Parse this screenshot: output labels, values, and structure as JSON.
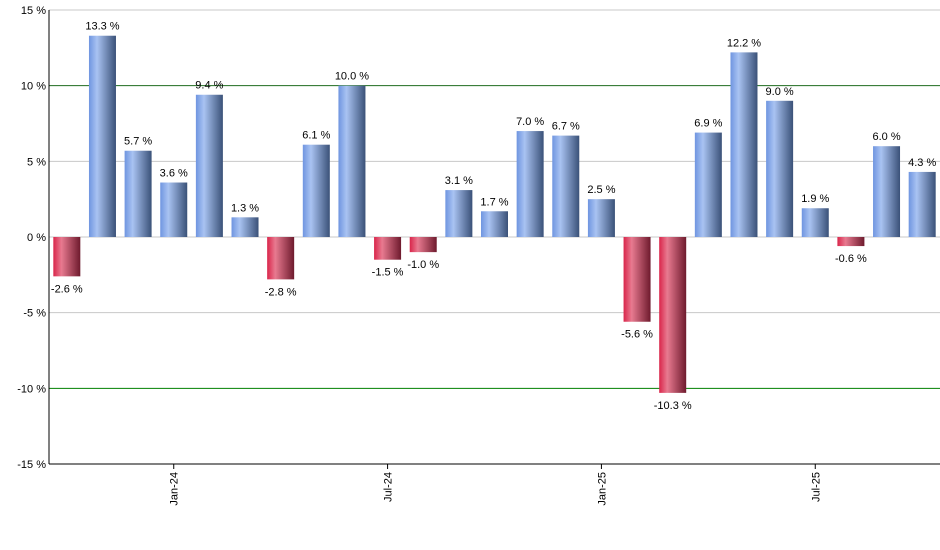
{
  "chart_data": {
    "type": "bar",
    "categories": [
      "Oct-23",
      "Nov-23",
      "Dec-23",
      "Jan-24",
      "Feb-24",
      "Mar-24",
      "Apr-24",
      "May-24",
      "Jun-24",
      "Jul-24",
      "Aug-24",
      "Sep-24",
      "Oct-24",
      "Nov-24",
      "Dec-24",
      "Jan-25",
      "Feb-25",
      "Mar-25",
      "Apr-25",
      "May-25",
      "Jun-25",
      "Jul-25",
      "Aug-25",
      "Sep-25",
      "Oct-25"
    ],
    "values": [
      -2.6,
      13.3,
      5.7,
      3.6,
      9.4,
      1.3,
      -2.8,
      6.1,
      10.0,
      -1.5,
      -1.0,
      3.1,
      1.7,
      7.0,
      6.7,
      2.5,
      -5.6,
      -10.3,
      6.9,
      12.2,
      9.0,
      1.9,
      -0.6,
      6.0,
      4.3
    ],
    "value_labels": [
      "-2.6 %",
      "13.3 %",
      "5.7 %",
      "3.6 %",
      "9.4 %",
      "1.3 %",
      "-2.8 %",
      "6.1 %",
      "10.0 %",
      "-1.5 %",
      "-1.0 %",
      "3.1 %",
      "1.7 %",
      "7.0 %",
      "6.7 %",
      "2.5 %",
      "-5.6 %",
      "-10.3 %",
      "6.9 %",
      "12.2 %",
      "9.0 %",
      "1.9 %",
      "-0.6 %",
      "6.0 %",
      "4.3 %"
    ],
    "x_tick_labels": [
      {
        "category": "Jan-24",
        "label": "Jan-24"
      },
      {
        "category": "Jul-24",
        "label": "Jul-24"
      },
      {
        "category": "Jan-25",
        "label": "Jan-25"
      },
      {
        "category": "Jul-25",
        "label": "Jul-25"
      }
    ],
    "y_ticks": [
      15,
      10,
      5,
      0,
      -5,
      -10,
      -15
    ],
    "y_tick_labels": [
      "15 %",
      "10 %",
      "5 %",
      "0 %",
      "-5 %",
      "-10 %",
      "-15 %"
    ],
    "ylim": [
      -15,
      15
    ],
    "reference_lines": [
      {
        "value": 10,
        "color": "#1f6b1f"
      },
      {
        "value": -10,
        "color": "#008000"
      }
    ],
    "grid": true,
    "colors": {
      "positive": "#7a9fe0",
      "positive_dark": "#3a5178",
      "negative": "#d93a5a",
      "negative_dark": "#7a1f33",
      "grid": "#c8c8c8"
    },
    "title": "",
    "xlabel": "",
    "ylabel": ""
  }
}
